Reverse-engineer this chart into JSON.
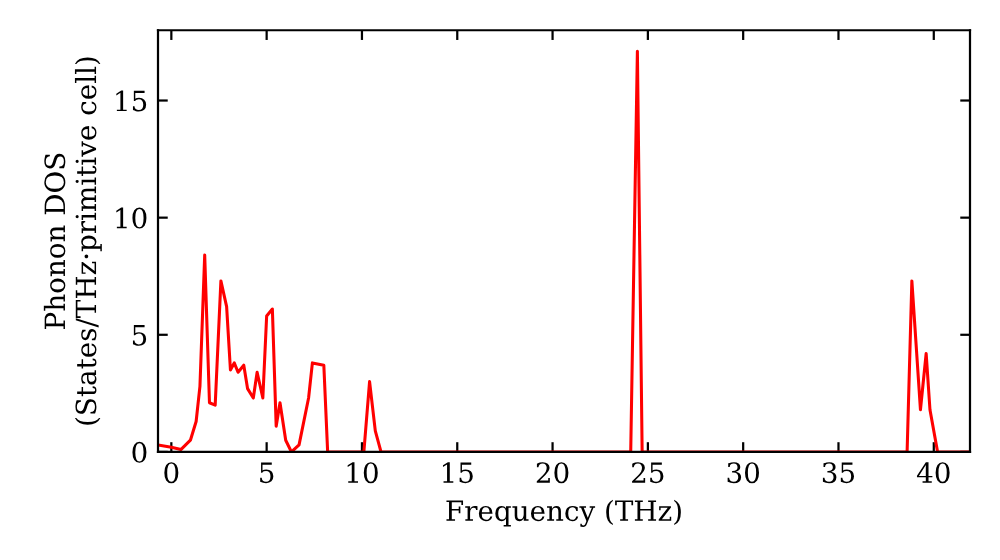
{
  "chart_data": {
    "type": "line",
    "xlabel": "Frequency (THz)",
    "ylabel": "Phonon DOS\n(States/THz·primitive cell)",
    "x": [
      -0.7,
      0,
      0.5,
      1.0,
      1.3,
      1.5,
      1.75,
      2.0,
      2.3,
      2.6,
      2.9,
      3.1,
      3.3,
      3.5,
      3.8,
      4.0,
      4.3,
      4.5,
      4.8,
      5.0,
      5.3,
      5.5,
      5.7,
      6.0,
      6.3,
      6.7,
      7.2,
      7.4,
      8.0,
      8.2,
      10.1,
      10.4,
      10.7,
      11.0,
      24.1,
      24.45,
      24.7,
      38.6,
      38.85,
      39.3,
      39.6,
      39.8,
      40.2,
      41.9
    ],
    "series": [
      {
        "color": "#ff0000",
        "values": [
          0.3,
          0.2,
          0.1,
          0.5,
          1.3,
          2.8,
          8.4,
          2.1,
          2.0,
          7.3,
          6.2,
          3.5,
          3.8,
          3.4,
          3.7,
          2.7,
          2.3,
          3.4,
          2.3,
          5.8,
          6.1,
          1.1,
          2.1,
          0.5,
          0,
          0.3,
          2.3,
          3.8,
          3.7,
          0,
          0,
          3.0,
          0.9,
          0,
          0,
          17.1,
          0,
          0,
          7.3,
          1.8,
          4.2,
          1.8,
          0,
          0
        ]
      }
    ],
    "xlim": [
      -0.7,
      41.9
    ],
    "ylim": [
      0,
      18
    ],
    "xticks": [
      0,
      5,
      10,
      15,
      20,
      25,
      30,
      35,
      40
    ],
    "yticks": [
      0,
      5,
      10,
      15
    ],
    "grid": false
  }
}
